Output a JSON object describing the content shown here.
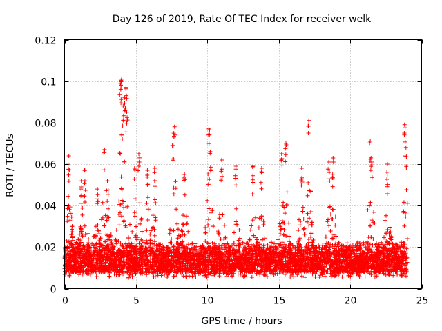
{
  "chart_data": {
    "type": "scatter",
    "title": "Day 126 of 2019, Rate Of TEC Index for receiver welk",
    "xlabel": "GPS time / hours",
    "ylabel": "ROTI / TECUs",
    "xlim": [
      0,
      25
    ],
    "ylim": [
      0,
      0.12
    ],
    "xticks": [
      0,
      5,
      10,
      15,
      20,
      25
    ],
    "yticks": [
      0,
      0.02,
      0.04,
      0.06,
      0.08,
      0.1,
      0.12
    ],
    "xtick_labels": [
      "0",
      "5",
      "10",
      "15",
      "20",
      "25"
    ],
    "ytick_labels": [
      "0",
      "0.02",
      "0.04",
      "0.06",
      "0.08",
      "0.1",
      "0.12"
    ],
    "grid": true,
    "marker": "+",
    "color": "#ff0000",
    "series": [
      {
        "name": "ROTI",
        "data_range_hours": [
          0,
          24
        ],
        "typical_band": [
          0.008,
          0.02
        ],
        "peaks": [
          {
            "x": 0.3,
            "y": 0.064
          },
          {
            "x": 1.2,
            "y": 0.052
          },
          {
            "x": 1.4,
            "y": 0.057
          },
          {
            "x": 2.3,
            "y": 0.048
          },
          {
            "x": 2.8,
            "y": 0.067
          },
          {
            "x": 3.0,
            "y": 0.052
          },
          {
            "x": 3.9,
            "y": 0.099
          },
          {
            "x": 4.0,
            "y": 0.101
          },
          {
            "x": 4.1,
            "y": 0.088
          },
          {
            "x": 4.2,
            "y": 0.092
          },
          {
            "x": 4.3,
            "y": 0.097
          },
          {
            "x": 4.35,
            "y": 0.085
          },
          {
            "x": 4.9,
            "y": 0.058
          },
          {
            "x": 5.2,
            "y": 0.065
          },
          {
            "x": 5.8,
            "y": 0.057
          },
          {
            "x": 6.3,
            "y": 0.058
          },
          {
            "x": 7.7,
            "y": 0.078
          },
          {
            "x": 7.6,
            "y": 0.069
          },
          {
            "x": 8.4,
            "y": 0.055
          },
          {
            "x": 10.1,
            "y": 0.077
          },
          {
            "x": 10.2,
            "y": 0.066
          },
          {
            "x": 11.0,
            "y": 0.062
          },
          {
            "x": 12.0,
            "y": 0.059
          },
          {
            "x": 13.2,
            "y": 0.059
          },
          {
            "x": 13.8,
            "y": 0.058
          },
          {
            "x": 15.2,
            "y": 0.065
          },
          {
            "x": 15.5,
            "y": 0.07
          },
          {
            "x": 16.6,
            "y": 0.058
          },
          {
            "x": 17.1,
            "y": 0.081
          },
          {
            "x": 18.5,
            "y": 0.061
          },
          {
            "x": 18.8,
            "y": 0.063
          },
          {
            "x": 21.4,
            "y": 0.071
          },
          {
            "x": 21.5,
            "y": 0.061
          },
          {
            "x": 22.6,
            "y": 0.06
          },
          {
            "x": 23.8,
            "y": 0.079
          },
          {
            "x": 23.9,
            "y": 0.068
          }
        ]
      }
    ]
  }
}
